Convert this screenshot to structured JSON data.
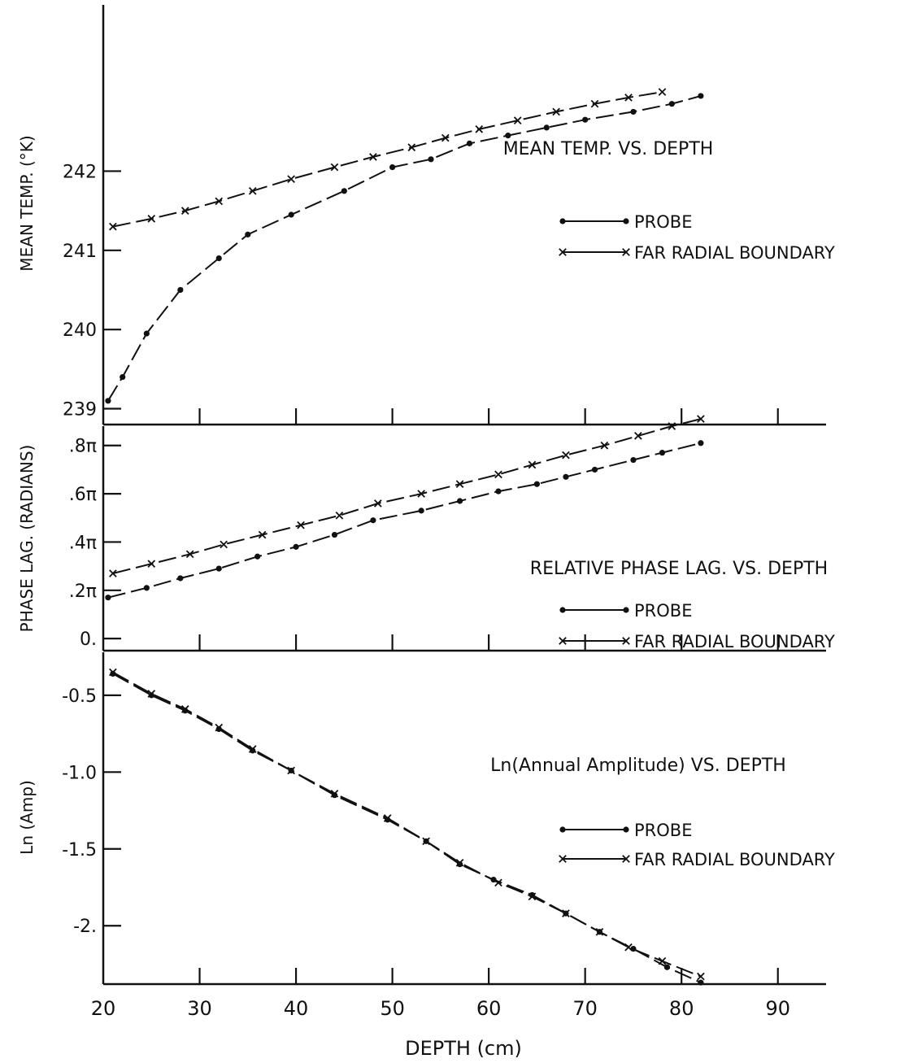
{
  "chart_data": [
    {
      "type": "line",
      "title": "MEAN TEMP. VS. DEPTH",
      "xlabel": "DEPTH (cm)",
      "ylabel": "MEAN TEMP. (°K)",
      "xlim": [
        20,
        95
      ],
      "ylim": [
        238.8,
        244.1
      ],
      "yticks": [
        {
          "value": 239,
          "label": "239"
        },
        {
          "value": 240,
          "label": "240"
        },
        {
          "value": 241,
          "label": "241"
        },
        {
          "value": 242,
          "label": "242"
        }
      ],
      "legend": "right",
      "series": [
        {
          "name": "PROBE",
          "marker": "dot",
          "x": [
            20.5,
            22,
            24.5,
            28,
            32,
            35,
            39.5,
            45,
            50,
            54,
            58,
            62,
            66,
            70,
            75,
            79,
            82
          ],
          "y": [
            239.1,
            239.4,
            239.95,
            240.5,
            240.9,
            241.2,
            241.45,
            241.75,
            242.05,
            242.15,
            242.35,
            242.45,
            242.55,
            242.65,
            242.75,
            242.85,
            242.95
          ]
        },
        {
          "name": "FAR RADIAL BOUNDARY",
          "marker": "x",
          "x": [
            21,
            25,
            28.5,
            32,
            35.5,
            39.5,
            44,
            48,
            52,
            55.5,
            59,
            63,
            67,
            71,
            74.5,
            78
          ],
          "y": [
            241.3,
            241.4,
            241.5,
            241.62,
            241.75,
            241.9,
            242.05,
            242.18,
            242.3,
            242.42,
            242.53,
            242.64,
            242.75,
            242.85,
            242.93,
            243.0
          ]
        }
      ]
    },
    {
      "type": "line",
      "title": "RELATIVE PHASE LAG. VS. DEPTH",
      "xlabel": "DEPTH (cm)",
      "ylabel": "PHASE LAG. (RADIANS)",
      "xlim": [
        20,
        95
      ],
      "ylim": [
        -0.05,
        0.88
      ],
      "yticks": [
        {
          "value": 0,
          "label": "0."
        },
        {
          "value": 0.2,
          "label": ".2π"
        },
        {
          "value": 0.4,
          "label": ".4π"
        },
        {
          "value": 0.6,
          "label": ".6π"
        },
        {
          "value": 0.8,
          "label": ".8π"
        }
      ],
      "legend": "right",
      "series": [
        {
          "name": "PROBE",
          "marker": "dot",
          "x": [
            20.5,
            24.5,
            28,
            32,
            36,
            40,
            44,
            48,
            53,
            57,
            61,
            65,
            68,
            71,
            75,
            78,
            82
          ],
          "y": [
            0.17,
            0.21,
            0.25,
            0.29,
            0.34,
            0.38,
            0.43,
            0.49,
            0.53,
            0.57,
            0.61,
            0.64,
            0.67,
            0.7,
            0.74,
            0.77,
            0.81
          ]
        },
        {
          "name": "FAR RADIAL BOUNDARY",
          "marker": "x",
          "x": [
            21,
            25,
            29,
            32.5,
            36.5,
            40.5,
            44.5,
            48.5,
            53,
            57,
            61,
            64.5,
            68,
            72,
            75.5,
            79,
            82
          ],
          "y": [
            0.27,
            0.31,
            0.35,
            0.39,
            0.43,
            0.47,
            0.51,
            0.56,
            0.6,
            0.64,
            0.68,
            0.72,
            0.76,
            0.8,
            0.84,
            0.88,
            0.91
          ]
        }
      ]
    },
    {
      "type": "line",
      "title": "Ln(Annual Amplitude) VS. DEPTH",
      "xlabel": "DEPTH (cm)",
      "ylabel": "Ln (Amp)",
      "xlim": [
        20,
        95
      ],
      "ylim": [
        -2.38,
        -0.22
      ],
      "yticks": [
        {
          "value": -0.5,
          "label": "-0.5"
        },
        {
          "value": -1.0,
          "label": "-1.0"
        },
        {
          "value": -1.5,
          "label": "-1.5"
        },
        {
          "value": -2.0,
          "label": "-2."
        }
      ],
      "xticks": [
        {
          "value": 20,
          "label": "20"
        },
        {
          "value": 30,
          "label": "30"
        },
        {
          "value": 40,
          "label": "40"
        },
        {
          "value": 50,
          "label": "50"
        },
        {
          "value": 60,
          "label": "60"
        },
        {
          "value": 70,
          "label": "70"
        },
        {
          "value": 80,
          "label": "80"
        },
        {
          "value": 90,
          "label": "90"
        }
      ],
      "legend": "right",
      "series": [
        {
          "name": "PROBE",
          "marker": "dot",
          "x": [
            21,
            25,
            28.5,
            32,
            35.5,
            39.5,
            44,
            49.5,
            53.5,
            57,
            60.5,
            64.5,
            68,
            71.5,
            75,
            78.5,
            82
          ],
          "y": [
            -0.36,
            -0.5,
            -0.6,
            -0.72,
            -0.86,
            -0.99,
            -1.15,
            -1.31,
            -1.45,
            -1.6,
            -1.7,
            -1.8,
            -1.92,
            -2.04,
            -2.15,
            -2.27,
            -2.37
          ]
        },
        {
          "name": "FAR RADIAL BOUNDARY",
          "marker": "x",
          "x": [
            21,
            25,
            28.5,
            32,
            35.5,
            39.5,
            44,
            49.5,
            53.5,
            57,
            61,
            64.5,
            68,
            71.5,
            74.5,
            78,
            82
          ],
          "y": [
            -0.35,
            -0.49,
            -0.59,
            -0.71,
            -0.85,
            -0.99,
            -1.14,
            -1.3,
            -1.45,
            -1.59,
            -1.72,
            -1.81,
            -1.92,
            -2.04,
            -2.14,
            -2.23,
            -2.33
          ]
        }
      ]
    }
  ]
}
